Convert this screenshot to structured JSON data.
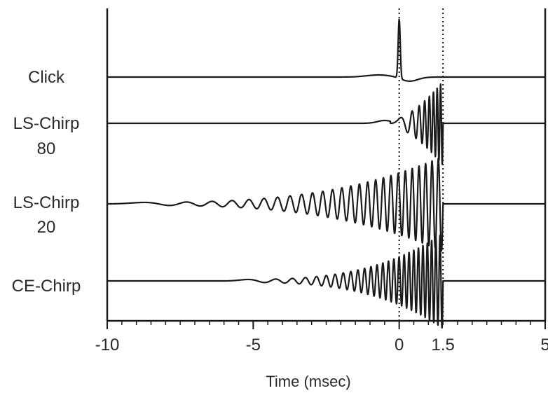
{
  "chart_data": {
    "type": "line",
    "title": "",
    "xlabel": "Time (msec)",
    "ylabel": "",
    "xlim": [
      -10,
      5
    ],
    "x_ticks": [
      {
        "value": -10,
        "label": "-10"
      },
      {
        "value": -5,
        "label": "-5"
      },
      {
        "value": 0,
        "label": "0"
      },
      {
        "value": 1.5,
        "label": "1.5"
      },
      {
        "value": 5,
        "label": "5"
      }
    ],
    "minor_tick_step": 0.5,
    "reference_lines": [
      {
        "x": 0,
        "style": "dotted"
      },
      {
        "x": 1.5,
        "style": "dotted"
      }
    ],
    "series": [
      {
        "name": "Click",
        "label_lines": [
          "Click"
        ],
        "kind": "click",
        "peak_x": 0
      },
      {
        "name": "LS-Chirp 80",
        "label_lines": [
          "LS-Chirp",
          "80"
        ],
        "kind": "chirp",
        "start_x": -0.3,
        "end_x": 1.5
      },
      {
        "name": "LS-Chirp 20",
        "label_lines": [
          "LS-Chirp",
          "20"
        ],
        "kind": "chirp",
        "start_x": -10,
        "end_x": 1.5
      },
      {
        "name": "CE-Chirp",
        "label_lines": [
          "CE-Chirp"
        ],
        "kind": "chirp",
        "start_x": -6,
        "end_x": 1.5
      }
    ],
    "grid": false,
    "legend": "none"
  }
}
